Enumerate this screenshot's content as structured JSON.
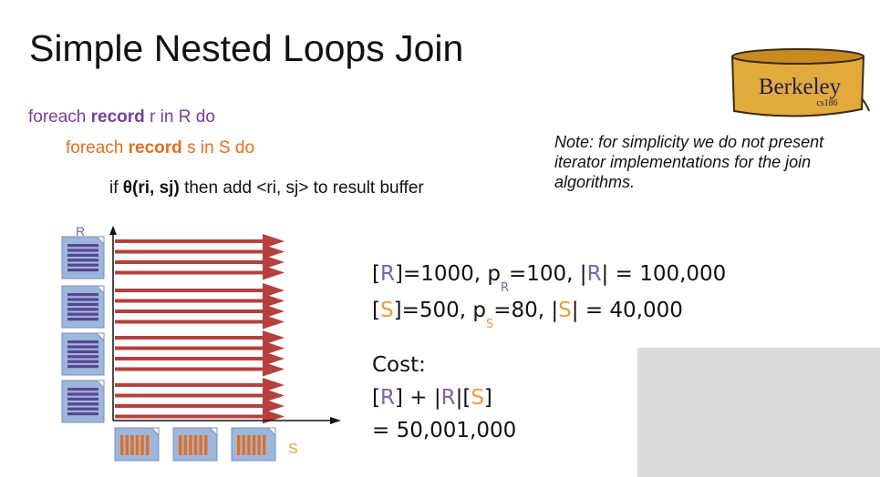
{
  "title": "Simple Nested Loops Join",
  "code": {
    "line1": {
      "pre": "foreach ",
      "kw": "record",
      "post": " r in R do"
    },
    "line2": {
      "pre": "foreach ",
      "kw": "record",
      "post": " s in S do"
    },
    "line3": {
      "pre": "if ",
      "kw": "θ(ri, sj)",
      "post": "  then add <ri, sj> to result buffer"
    }
  },
  "note": "Note: for simplicity we do not present iterator implementations for the join algorithms.",
  "stats": {
    "line1": {
      "b1": "[",
      "R": "R",
      "b2": "]=1000, p",
      "sub": "R",
      "mid": "=100, |",
      "R2": "R",
      "end": "| = 100,000"
    },
    "line2": {
      "b1": "[",
      "S": "S",
      "b2": "]=500, p",
      "sub": "S",
      "mid": "=80, |",
      "S2": "S",
      "end": "| = 40,000"
    }
  },
  "cost": {
    "label": "Cost:",
    "formula": {
      "a": "[",
      "R": "R",
      "b": "] + |",
      "R2": "R",
      "c": "|[",
      "S": "S",
      "d": "]"
    },
    "value": "= 50,001,000"
  },
  "logo": {
    "text": "Berkeley",
    "subtext": "cs186"
  },
  "diagram": {
    "r_label": "R",
    "s_label": "S"
  },
  "colors": {
    "r_purple": "#7a3d9a",
    "s_orange": "#e26e1f",
    "arrow_red": "#b5403d",
    "page_blue": "#9cb6dc",
    "stripe_purple": "#5a4592",
    "logo_gold": "#e2a93c"
  }
}
